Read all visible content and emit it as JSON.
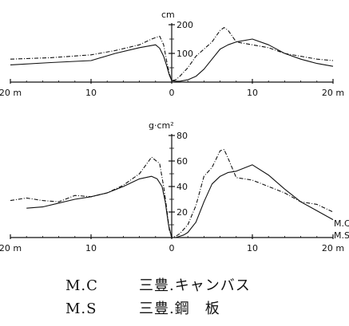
{
  "chart_data": [
    {
      "type": "line",
      "unit": "cm",
      "xlim": [
        -20,
        20
      ],
      "ylim": [
        0,
        200
      ],
      "x_ticks": [
        -20,
        -10,
        0,
        10,
        20
      ],
      "x_tick_labels": [
        "20 m",
        "10",
        "0",
        "10",
        "20 m"
      ],
      "y_ticks": [
        100,
        200
      ],
      "y_tick_labels": [
        "100",
        "200"
      ],
      "series": [
        {
          "style": "dashed",
          "x": [
            -20,
            -15,
            -10,
            -7,
            -4,
            -2.5,
            -1.5,
            -1,
            -0.6,
            -0.3,
            0,
            0.5,
            1,
            2,
            3,
            4,
            5,
            6,
            6.5,
            7,
            8,
            10,
            12,
            14,
            16,
            18,
            20
          ],
          "y": [
            80,
            85,
            95,
            110,
            130,
            150,
            160,
            130,
            70,
            30,
            5,
            8,
            20,
            50,
            90,
            115,
            140,
            180,
            190,
            180,
            140,
            130,
            120,
            100,
            90,
            80,
            75
          ]
        },
        {
          "style": "solid",
          "x": [
            -20,
            -15,
            -10,
            -7,
            -4,
            -2,
            -1.5,
            -1,
            -0.6,
            -0.3,
            0,
            0.5,
            1,
            2,
            3,
            4,
            5,
            6,
            7,
            8,
            10,
            12,
            14,
            16,
            18,
            20
          ],
          "y": [
            60,
            68,
            75,
            100,
            120,
            130,
            118,
            90,
            55,
            25,
            5,
            3,
            3,
            8,
            20,
            45,
            80,
            115,
            130,
            140,
            150,
            130,
            100,
            80,
            65,
            55
          ]
        }
      ]
    },
    {
      "type": "line",
      "unit": "g·cm²",
      "xlim": [
        -20,
        20
      ],
      "ylim": [
        0,
        80
      ],
      "x_ticks": [
        -20,
        -10,
        0,
        10,
        20
      ],
      "x_tick_labels": [
        "20 m",
        "10",
        "0",
        "10",
        "20 m"
      ],
      "y_ticks": [
        20,
        40,
        60,
        80
      ],
      "y_tick_labels": [
        "20",
        "40",
        "60",
        "80"
      ],
      "series": [
        {
          "name": "M.C",
          "style": "dashed",
          "x": [
            -20,
            -18,
            -16,
            -14,
            -12,
            -10,
            -8,
            -6,
            -4,
            -2.5,
            -1.5,
            -1,
            -0.6,
            -0.3,
            0,
            0.5,
            1,
            2,
            3,
            4,
            5,
            6,
            6.5,
            7,
            8,
            10,
            12,
            14,
            16,
            18,
            20
          ],
          "y": [
            29,
            31,
            29,
            28,
            33,
            32,
            35,
            41,
            50,
            63,
            58,
            40,
            22,
            6,
            0,
            1,
            3,
            10,
            25,
            48,
            55,
            68,
            69,
            62,
            47,
            45,
            40,
            35,
            28,
            26,
            20
          ]
        },
        {
          "name": "M.S",
          "style": "solid",
          "x": [
            -18,
            -16,
            -14,
            -12,
            -10,
            -8,
            -6,
            -4,
            -2.5,
            -1.8,
            -1.2,
            -0.8,
            -0.4,
            0,
            0.5,
            1,
            1.5,
            2,
            3,
            4,
            5,
            6,
            7,
            8,
            10,
            12,
            14,
            16,
            18,
            20
          ],
          "y": [
            23,
            24,
            27,
            30,
            32,
            35,
            40,
            46,
            48,
            46,
            40,
            28,
            10,
            0,
            0,
            1,
            2,
            4,
            12,
            28,
            42,
            48,
            51,
            52,
            57,
            49,
            38,
            28,
            21,
            14
          ]
        }
      ],
      "end_labels": [
        "M.C",
        "M.S"
      ]
    }
  ],
  "legend": [
    {
      "code": "M.C",
      "description": "三豊.キャンバス"
    },
    {
      "code": "M.S",
      "description": "三豊.鋼　板"
    }
  ]
}
